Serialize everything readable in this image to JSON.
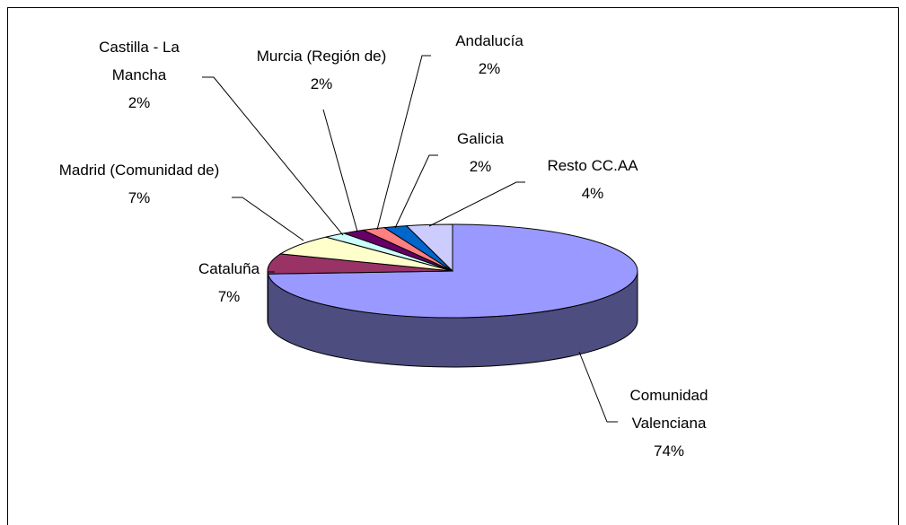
{
  "chart_data": {
    "type": "pie3d",
    "categories": [
      "Comunidad Valenciana",
      "Cataluña",
      "Madrid (Comunidad de)",
      "Castilla - La Mancha",
      "Murcia (Región de)",
      "Andalucía",
      "Galicia",
      "Resto CC.AA"
    ],
    "values": [
      74,
      7,
      7,
      2,
      2,
      2,
      2,
      4
    ],
    "value_labels": [
      "74%",
      "7%",
      "7%",
      "2%",
      "2%",
      "2%",
      "2%",
      "4%"
    ],
    "colors": [
      "#9999ff",
      "#993366",
      "#ffffcc",
      "#ccffff",
      "#660066",
      "#ff8080",
      "#0066cc",
      "#ccccff"
    ]
  }
}
